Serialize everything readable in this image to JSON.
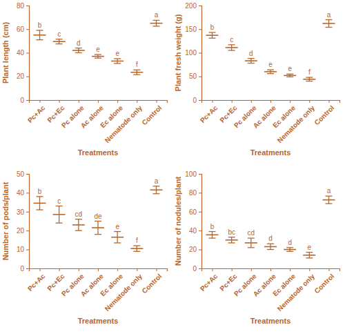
{
  "chart_data": [
    {
      "type": "errorbar",
      "x_label": "Treatments",
      "y_label": "Plant length (cm)",
      "categories": [
        "Pc+Ac",
        "Pc+Ec",
        "Pc alone",
        "Ac alone",
        "Ec alone",
        "Nematode only",
        "Control"
      ],
      "values": [
        55,
        49.5,
        42,
        37,
        33,
        23.5,
        65
      ],
      "errors": [
        4,
        2,
        2,
        1.5,
        2,
        2,
        2.5
      ],
      "significance": [
        "b",
        "c",
        "d",
        "e",
        "e",
        "f",
        "a"
      ],
      "ylim": [
        0,
        80
      ],
      "yticks": [
        0,
        20,
        40,
        60,
        80
      ],
      "color": "#b8652a"
    },
    {
      "type": "errorbar",
      "x_label": "Treatments",
      "y_label": "Plant fresh weight (g)",
      "categories": [
        "Pc+Ac",
        "Pc+Ec",
        "Pc alone",
        "Ac alone",
        "Ec alone",
        "Nematode only",
        "Control"
      ],
      "values": [
        137,
        111,
        83,
        60,
        52,
        44,
        162
      ],
      "errors": [
        6,
        6,
        5,
        4,
        3,
        4,
        8
      ],
      "significance": [
        "b",
        "c",
        "d",
        "e",
        "e",
        "f",
        "a"
      ],
      "ylim": [
        0,
        200
      ],
      "yticks": [
        0,
        50,
        100,
        150,
        200
      ],
      "color": "#b8652a"
    },
    {
      "type": "errorbar",
      "x_label": "Treatments",
      "y_label": "Number of pods/plant",
      "categories": [
        "Pc+Ac",
        "Pc+Ec",
        "Pc alone",
        "Ac alone",
        "Ec alone",
        "Nematode only",
        "Control"
      ],
      "values": [
        34.5,
        28.5,
        23,
        21.5,
        16.5,
        10.5,
        41.5
      ],
      "errors": [
        3.5,
        4.5,
        3,
        3.5,
        3,
        1.5,
        2
      ],
      "significance": [
        "b",
        "c",
        "cd",
        "de",
        "e",
        "f",
        "a"
      ],
      "ylim": [
        0,
        50
      ],
      "yticks": [
        0,
        10,
        20,
        30,
        40,
        50
      ],
      "color": "#b8652a"
    },
    {
      "type": "errorbar",
      "x_label": "Treatments",
      "y_label": "Number of nodules/plant",
      "categories": [
        "Pc+Ac",
        "Pc+Ec",
        "Pc alone",
        "Ac alone",
        "Ec alone",
        "Nematode only",
        "Control"
      ],
      "values": [
        35.5,
        30,
        27,
        23,
        20,
        14,
        72.5
      ],
      "errors": [
        3.5,
        3,
        5,
        3,
        2,
        3,
        4
      ],
      "significance": [
        "b",
        "bc",
        "cd",
        "d",
        "d",
        "e",
        "a"
      ],
      "ylim": [
        0,
        100
      ],
      "yticks": [
        0,
        20,
        40,
        60,
        80,
        100
      ],
      "color": "#b8652a"
    }
  ]
}
